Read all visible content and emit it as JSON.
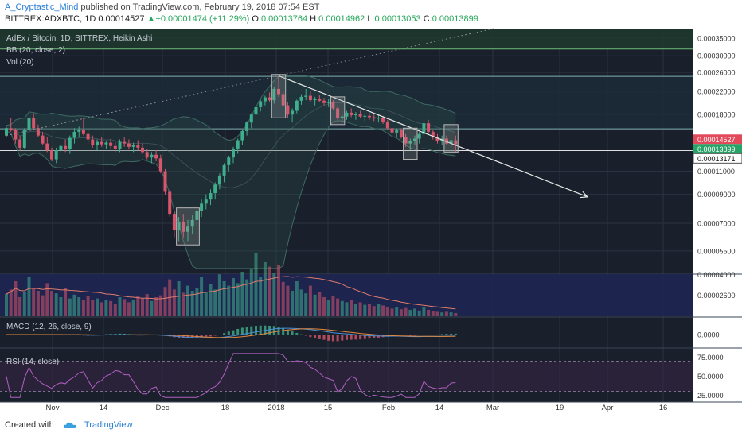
{
  "header": {
    "author": "A_Cryptastic_Mind",
    "published_text": "published on TradingView.com, February 19, 2018 07:54 EST",
    "symbol": "BITTREX:ADXBTC, 1D",
    "last": "0.00014527",
    "change_arrow": "▲",
    "change": "+0.00001474 (+11.29%)",
    "o_label": "O:",
    "o": "0.00013764",
    "h_label": "H:",
    "h": "0.00014962",
    "l_label": "L:",
    "l": "0.00013053",
    "c_label": "C:",
    "c": "0.00013899"
  },
  "panes": {
    "main_title": "AdEx / Bitcoin, 1D, BITTREX, Heikin Ashi",
    "bb_label": "BB (20, close, 2)",
    "vol_label": "Vol (20)",
    "macd_label": "MACD (12, 26, close, 9)",
    "rsi_label": "RSI (14, close)"
  },
  "footer": {
    "created_with": "Created with",
    "brand": "TradingView"
  },
  "colors": {
    "bg": "#19202b",
    "up": "#3fae8c",
    "down": "#d8556c",
    "grid": "#2a3342",
    "band_line": "#3e6a62",
    "hline": "#9aa0a8",
    "trend": "#e6e6e6",
    "box": "#b8b8b8",
    "price_badge_last": "#e24a5c",
    "price_badge_close": "#27a367",
    "axis_bg": "#ffffff"
  },
  "chart_data": {
    "type": "candlestick",
    "chart_style": "Heikin Ashi",
    "x_ticks": [
      "Nov",
      "14",
      "Dec",
      "18",
      "2018",
      "15",
      "Feb",
      "14",
      "Mar",
      "19",
      "Apr",
      "16"
    ],
    "price_axis": {
      "ylim": [
        4.5e-05,
        0.00038
      ],
      "ticks": [
        "0.00035000",
        "0.00030000",
        "0.00026000",
        "0.00022000",
        "0.00018000",
        "0.00011000",
        "0.00009000",
        "0.00007000",
        "0.00005500"
      ]
    },
    "price_labels": [
      {
        "value": 0.00014527,
        "text": "0.00014527",
        "kind": "last"
      },
      {
        "value": 0.00013899,
        "text": "0.00013899",
        "kind": "close"
      },
      {
        "value": 0.00013171,
        "text": "0.00013171",
        "kind": "level"
      }
    ],
    "horizontal_levels": [
      0.00013171,
      0.000159,
      0.000251,
      0.000318
    ],
    "candles": [
      [
        0.00015,
        0.000162,
        0.000148,
        0.00016
      ],
      [
        0.00016,
        0.000175,
        0.000155,
        0.000158
      ],
      [
        0.000158,
        0.00016,
        0.00014,
        0.000145
      ],
      [
        0.000145,
        0.00015,
        0.000132,
        0.000135
      ],
      [
        0.000135,
        0.00016,
        0.000133,
        0.000158
      ],
      [
        0.000158,
        0.000178,
        0.00015,
        0.000175
      ],
      [
        0.000175,
        0.000182,
        0.000158,
        0.00016
      ],
      [
        0.00016,
        0.000165,
        0.000148,
        0.00015
      ],
      [
        0.00015,
        0.000155,
        0.000138,
        0.00014
      ],
      [
        0.00014,
        0.000148,
        0.00013,
        0.000132
      ],
      [
        0.000132,
        0.000135,
        0.00012,
        0.000122
      ],
      [
        0.000122,
        0.000135,
        0.000118,
        0.000132
      ],
      [
        0.000132,
        0.00014,
        0.000128,
        0.000137
      ],
      [
        0.000137,
        0.000145,
        0.00013,
        0.000133
      ],
      [
        0.000133,
        0.00015,
        0.000128,
        0.000147
      ],
      [
        0.000147,
        0.00016,
        0.00014,
        0.000155
      ],
      [
        0.000155,
        0.000162,
        0.000148,
        0.000158
      ],
      [
        0.000158,
        0.000175,
        0.00015,
        0.000152
      ],
      [
        0.000152,
        0.000158,
        0.00014,
        0.000145
      ],
      [
        0.000145,
        0.00015,
        0.000135,
        0.000138
      ],
      [
        0.000138,
        0.000145,
        0.000132,
        0.000142
      ],
      [
        0.000142,
        0.000148,
        0.000136,
        0.000139
      ],
      [
        0.000139,
        0.000143,
        0.000133,
        0.000141
      ],
      [
        0.000141,
        0.000146,
        0.000134,
        0.000137
      ],
      [
        0.000137,
        0.000142,
        0.00013,
        0.000134
      ],
      [
        0.000134,
        0.000145,
        0.00013,
        0.000142
      ],
      [
        0.000142,
        0.000148,
        0.000136,
        0.00014
      ],
      [
        0.00014,
        0.000145,
        0.000133,
        0.000136
      ],
      [
        0.000136,
        0.000141,
        0.00013,
        0.000138
      ],
      [
        0.000138,
        0.000144,
        0.000132,
        0.000135
      ],
      [
        0.000135,
        0.00014,
        0.000128,
        0.00013
      ],
      [
        0.00013,
        0.000133,
        0.000122,
        0.000124
      ],
      [
        0.000124,
        0.00013,
        0.000118,
        0.000127
      ],
      [
        0.000127,
        0.000132,
        0.00012,
        0.000123
      ],
      [
        0.000123,
        0.000127,
        0.000108,
        0.00011
      ],
      [
        0.00011,
        0.000112,
        9e-05,
        9.2e-05
      ],
      [
        9.2e-05,
        9.4e-05,
        7.4e-05,
        7.6e-05
      ],
      [
        7.6e-05,
        7.8e-05,
        6.2e-05,
        6.6e-05
      ],
      [
        6.6e-05,
        7.4e-05,
        6e-05,
        7.1e-05
      ],
      [
        7.1e-05,
        7.6e-05,
        6.2e-05,
        6.5e-05
      ],
      [
        6.5e-05,
        7.2e-05,
        6e-05,
        6.8e-05
      ],
      [
        6.8e-05,
        7.5e-05,
        6.4e-05,
        7.2e-05
      ],
      [
        7.2e-05,
        8e-05,
        6.8e-05,
        7.8e-05
      ],
      [
        7.8e-05,
        8.6e-05,
        7.4e-05,
        8.3e-05
      ],
      [
        8.3e-05,
        9e-05,
        7.9e-05,
        8.6e-05
      ],
      [
        8.6e-05,
        9.4e-05,
        8.2e-05,
        9.1e-05
      ],
      [
        9.1e-05,
        0.0001,
        8.6e-05,
        9.8e-05
      ],
      [
        9.8e-05,
        0.000108,
        9.4e-05,
        0.000106
      ],
      [
        0.000106,
        0.000118,
        0.0001,
        0.000116
      ],
      [
        0.000116,
        0.000126,
        0.00011,
        0.000124
      ],
      [
        0.000124,
        0.000136,
        0.000118,
        0.000134
      ],
      [
        0.000134,
        0.000146,
        0.000128,
        0.000144
      ],
      [
        0.000144,
        0.000158,
        0.000138,
        0.000156
      ],
      [
        0.000156,
        0.00017,
        0.00015,
        0.000168
      ],
      [
        0.000168,
        0.000182,
        0.00016,
        0.00018
      ],
      [
        0.00018,
        0.000195,
        0.000172,
        0.000192
      ],
      [
        0.000192,
        0.000205,
        0.000185,
        0.000202
      ],
      [
        0.000202,
        0.000212,
        0.000195,
        0.000209
      ],
      [
        0.000209,
        0.000218,
        0.0002,
        0.000204
      ],
      [
        0.000204,
        0.000228,
        0.000198,
        0.000225
      ],
      [
        0.000225,
        0.000252,
        0.00021,
        0.000215
      ],
      [
        0.000215,
        0.00022,
        0.000192,
        0.000195
      ],
      [
        0.000195,
        0.0002,
        0.000175,
        0.00018
      ],
      [
        0.00018,
        0.00019,
        0.000168,
        0.000186
      ],
      [
        0.000186,
        0.000205,
        0.000182,
        0.000203
      ],
      [
        0.000203,
        0.000215,
        0.000196,
        0.00021
      ],
      [
        0.00021,
        0.000225,
        0.000204,
        0.000212
      ],
      [
        0.000212,
        0.00022,
        0.0002,
        0.000204
      ],
      [
        0.000204,
        0.00021,
        0.000195,
        0.000206
      ],
      [
        0.000206,
        0.000214,
        0.0002,
        0.000203
      ],
      [
        0.000203,
        0.000208,
        0.000195,
        0.000199
      ],
      [
        0.000199,
        0.000206,
        0.000192,
        0.000201
      ],
      [
        0.000201,
        0.000204,
        0.000188,
        0.00019
      ],
      [
        0.00019,
        0.000194,
        0.000172,
        0.000175
      ],
      [
        0.000175,
        0.00018,
        0.000168,
        0.000177
      ],
      [
        0.000177,
        0.000186,
        0.000172,
        0.000183
      ],
      [
        0.000183,
        0.00019,
        0.000176,
        0.000179
      ],
      [
        0.000179,
        0.000184,
        0.000172,
        0.000181
      ],
      [
        0.000181,
        0.000186,
        0.000175,
        0.000177
      ],
      [
        0.000177,
        0.000182,
        0.00017,
        0.000178
      ],
      [
        0.000178,
        0.000182,
        0.000172,
        0.000176
      ],
      [
        0.000176,
        0.00018,
        0.00017,
        0.000174
      ],
      [
        0.000174,
        0.000179,
        0.000168,
        0.000175
      ],
      [
        0.000175,
        0.000178,
        0.000166,
        0.000169
      ],
      [
        0.000169,
        0.000172,
        0.000158,
        0.00016
      ],
      [
        0.00016,
        0.000164,
        0.000152,
        0.000154
      ],
      [
        0.000154,
        0.00016,
        0.000148,
        0.000157
      ],
      [
        0.000157,
        0.00016,
        0.000146,
        0.000148
      ],
      [
        0.000148,
        0.000152,
        0.000136,
        0.00014
      ],
      [
        0.00014,
        0.000146,
        0.000132,
        0.000143
      ],
      [
        0.000143,
        0.00015,
        0.000138,
        0.000146
      ],
      [
        0.000146,
        0.000155,
        0.00014,
        0.000152
      ],
      [
        0.000152,
        0.00017,
        0.000148,
        0.000167
      ],
      [
        0.000167,
        0.000172,
        0.000152,
        0.000155
      ],
      [
        0.000155,
        0.000158,
        0.000145,
        0.000148
      ],
      [
        0.000148,
        0.000152,
        0.00014,
        0.000143
      ],
      [
        0.000143,
        0.00015,
        0.000138,
        0.000146
      ],
      [
        0.000146,
        0.00015,
        0.000138,
        0.00014
      ],
      [
        0.00014,
        0.000146,
        0.000135,
        0.000144
      ],
      [
        0.000144,
        0.00015,
        0.00013,
        0.000139
      ]
    ],
    "volume": {
      "range": [
        0,
        1
      ],
      "values": [
        0.35,
        0.42,
        0.55,
        0.3,
        0.38,
        0.62,
        0.45,
        0.4,
        0.33,
        0.52,
        0.4,
        0.36,
        0.3,
        0.44,
        0.28,
        0.34,
        0.3,
        0.26,
        0.32,
        0.25,
        0.28,
        0.22,
        0.26,
        0.24,
        0.2,
        0.3,
        0.27,
        0.22,
        0.25,
        0.32,
        0.28,
        0.35,
        0.24,
        0.3,
        0.33,
        0.46,
        0.58,
        0.42,
        0.55,
        0.37,
        0.48,
        0.4,
        0.44,
        0.62,
        0.38,
        0.5,
        0.42,
        0.66,
        0.55,
        0.48,
        0.6,
        0.52,
        0.7,
        0.58,
        0.74,
        1.0,
        0.62,
        0.85,
        0.78,
        0.68,
        0.8,
        0.54,
        0.48,
        0.4,
        0.55,
        0.42,
        0.36,
        0.48,
        0.34,
        0.38,
        0.3,
        0.26,
        0.32,
        0.28,
        0.24,
        0.22,
        0.26,
        0.2,
        0.22,
        0.18,
        0.2,
        0.16,
        0.19,
        0.17,
        0.15,
        0.12,
        0.14,
        0.11,
        0.13,
        0.1,
        0.12,
        0.09,
        0.14,
        0.1,
        0.08,
        0.07,
        0.06,
        0.07,
        0.06,
        0.05
      ]
    },
    "rsi_ticks": [
      "75.0000",
      "50.0000",
      "25.0000"
    ],
    "macd_ticks": [
      "0.0000"
    ],
    "vol_ticks": [
      "0.00004000",
      "0.00002600"
    ]
  }
}
